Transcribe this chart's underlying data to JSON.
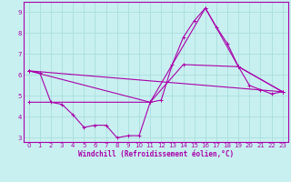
{
  "xlabel": "Windchill (Refroidissement éolien,°C)",
  "bg_color": "#c8f0f0",
  "line_color": "#aa00aa",
  "grid_color": "#aadddd",
  "xlim": [
    -0.5,
    23.5
  ],
  "ylim": [
    2.8,
    9.5
  ],
  "yticks": [
    3,
    4,
    5,
    6,
    7,
    8,
    9
  ],
  "xticks": [
    0,
    1,
    2,
    3,
    4,
    5,
    6,
    7,
    8,
    9,
    10,
    11,
    12,
    13,
    14,
    15,
    16,
    17,
    18,
    19,
    20,
    21,
    22,
    23
  ],
  "lines": [
    {
      "x": [
        0,
        1,
        2,
        3,
        4,
        5,
        6,
        7,
        8,
        9,
        10,
        11,
        12,
        13,
        14,
        15,
        16,
        17,
        18,
        19,
        20,
        21,
        22,
        23
      ],
      "y": [
        6.2,
        6.1,
        4.7,
        4.6,
        4.1,
        3.5,
        3.6,
        3.6,
        3.0,
        3.1,
        3.1,
        4.7,
        4.8,
        6.5,
        7.8,
        8.6,
        9.2,
        8.3,
        7.5,
        6.4,
        5.5,
        5.3,
        5.1,
        5.2
      ]
    },
    {
      "x": [
        0,
        23
      ],
      "y": [
        6.2,
        5.2
      ]
    },
    {
      "x": [
        0,
        11,
        16,
        19,
        23
      ],
      "y": [
        6.2,
        4.7,
        9.2,
        6.4,
        5.2
      ]
    },
    {
      "x": [
        0,
        11,
        14,
        19,
        23
      ],
      "y": [
        4.7,
        4.7,
        6.5,
        6.4,
        5.2
      ]
    }
  ]
}
